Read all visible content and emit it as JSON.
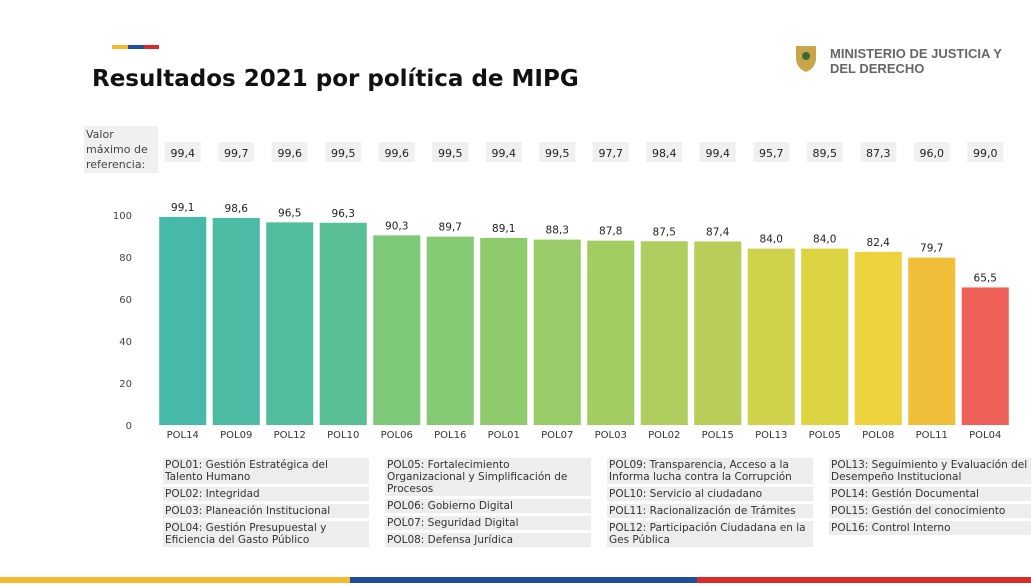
{
  "header": {
    "title": "Resultados 2021 por política de MIPG",
    "ministry": "MINISTERIO DE JUSTICIA Y DEL DERECHO"
  },
  "chart_data": {
    "type": "bar",
    "categories": [
      "POL14",
      "POL09",
      "POL12",
      "POL10",
      "POL06",
      "POL16",
      "POL01",
      "POL07",
      "POL03",
      "POL02",
      "POL15",
      "POL13",
      "POL05",
      "POL08",
      "POL11",
      "POL04"
    ],
    "values": [
      99.1,
      98.6,
      96.5,
      96.3,
      90.3,
      89.7,
      89.1,
      88.3,
      87.8,
      87.5,
      87.4,
      84.0,
      84.0,
      82.4,
      79.7,
      65.5
    ],
    "value_labels": [
      "99,1",
      "98,6",
      "96,5",
      "96,3",
      "90,3",
      "89,7",
      "89,1",
      "88,3",
      "87,8",
      "87,5",
      "87,4",
      "84,0",
      "84,0",
      "82,4",
      "79,7",
      "65,5"
    ],
    "colors": [
      "#46b9a8",
      "#4bbba3",
      "#52bd9c",
      "#5bbf96",
      "#7dc879",
      "#85c972",
      "#8fcb6c",
      "#99cc68",
      "#a3cd62",
      "#aecd5e",
      "#b8ce58",
      "#cfd24b",
      "#dcd342",
      "#ecd23d",
      "#f0bf3a",
      "#ed5f57"
    ],
    "ylim": [
      0,
      100
    ],
    "yticks": [
      0,
      20,
      40,
      60,
      80,
      100
    ],
    "grid": false,
    "reference": {
      "label": "Valor máximo de referencia:",
      "values": [
        99.4,
        99.7,
        99.6,
        99.5,
        99.6,
        99.5,
        99.4,
        99.5,
        97.7,
        98.4,
        99.4,
        95.7,
        89.5,
        87.3,
        96.0,
        99.0
      ],
      "value_labels": [
        "99,4",
        "99,7",
        "99,6",
        "99,5",
        "99,6",
        "99,5",
        "99,4",
        "99,5",
        "97,7",
        "98,4",
        "99,4",
        "95,7",
        "89,5",
        "87,3",
        "96,0",
        "99,0"
      ]
    }
  },
  "notes": [
    [
      "POL01: Gestión Estratégica del Talento Humano",
      "POL02: Integridad",
      "POL03: Planeación Institucional",
      "POL04: Gestión Presupuestal y Eficiencia del Gasto Público"
    ],
    [
      "POL05: Fortalecimiento Organizacional y Simplificación de Procesos",
      "POL06: Gobierno Digital",
      "POL07: Seguridad Digital",
      "POL08: Defensa Jurídica"
    ],
    [
      "POL09: Transparencia, Acceso a la Informa lucha contra la Corrupción",
      "POL10: Servicio al ciudadano",
      "POL11: Racionalización de Trámites",
      "POL12: Participación Ciudadana en la Ges Pública"
    ],
    [
      "POL13: Seguimiento y Evaluación del Desempeño Institucional",
      "POL14: Gestión Documental",
      "POL15: Gestión del conocimiento",
      "POL16: Control Interno"
    ]
  ]
}
